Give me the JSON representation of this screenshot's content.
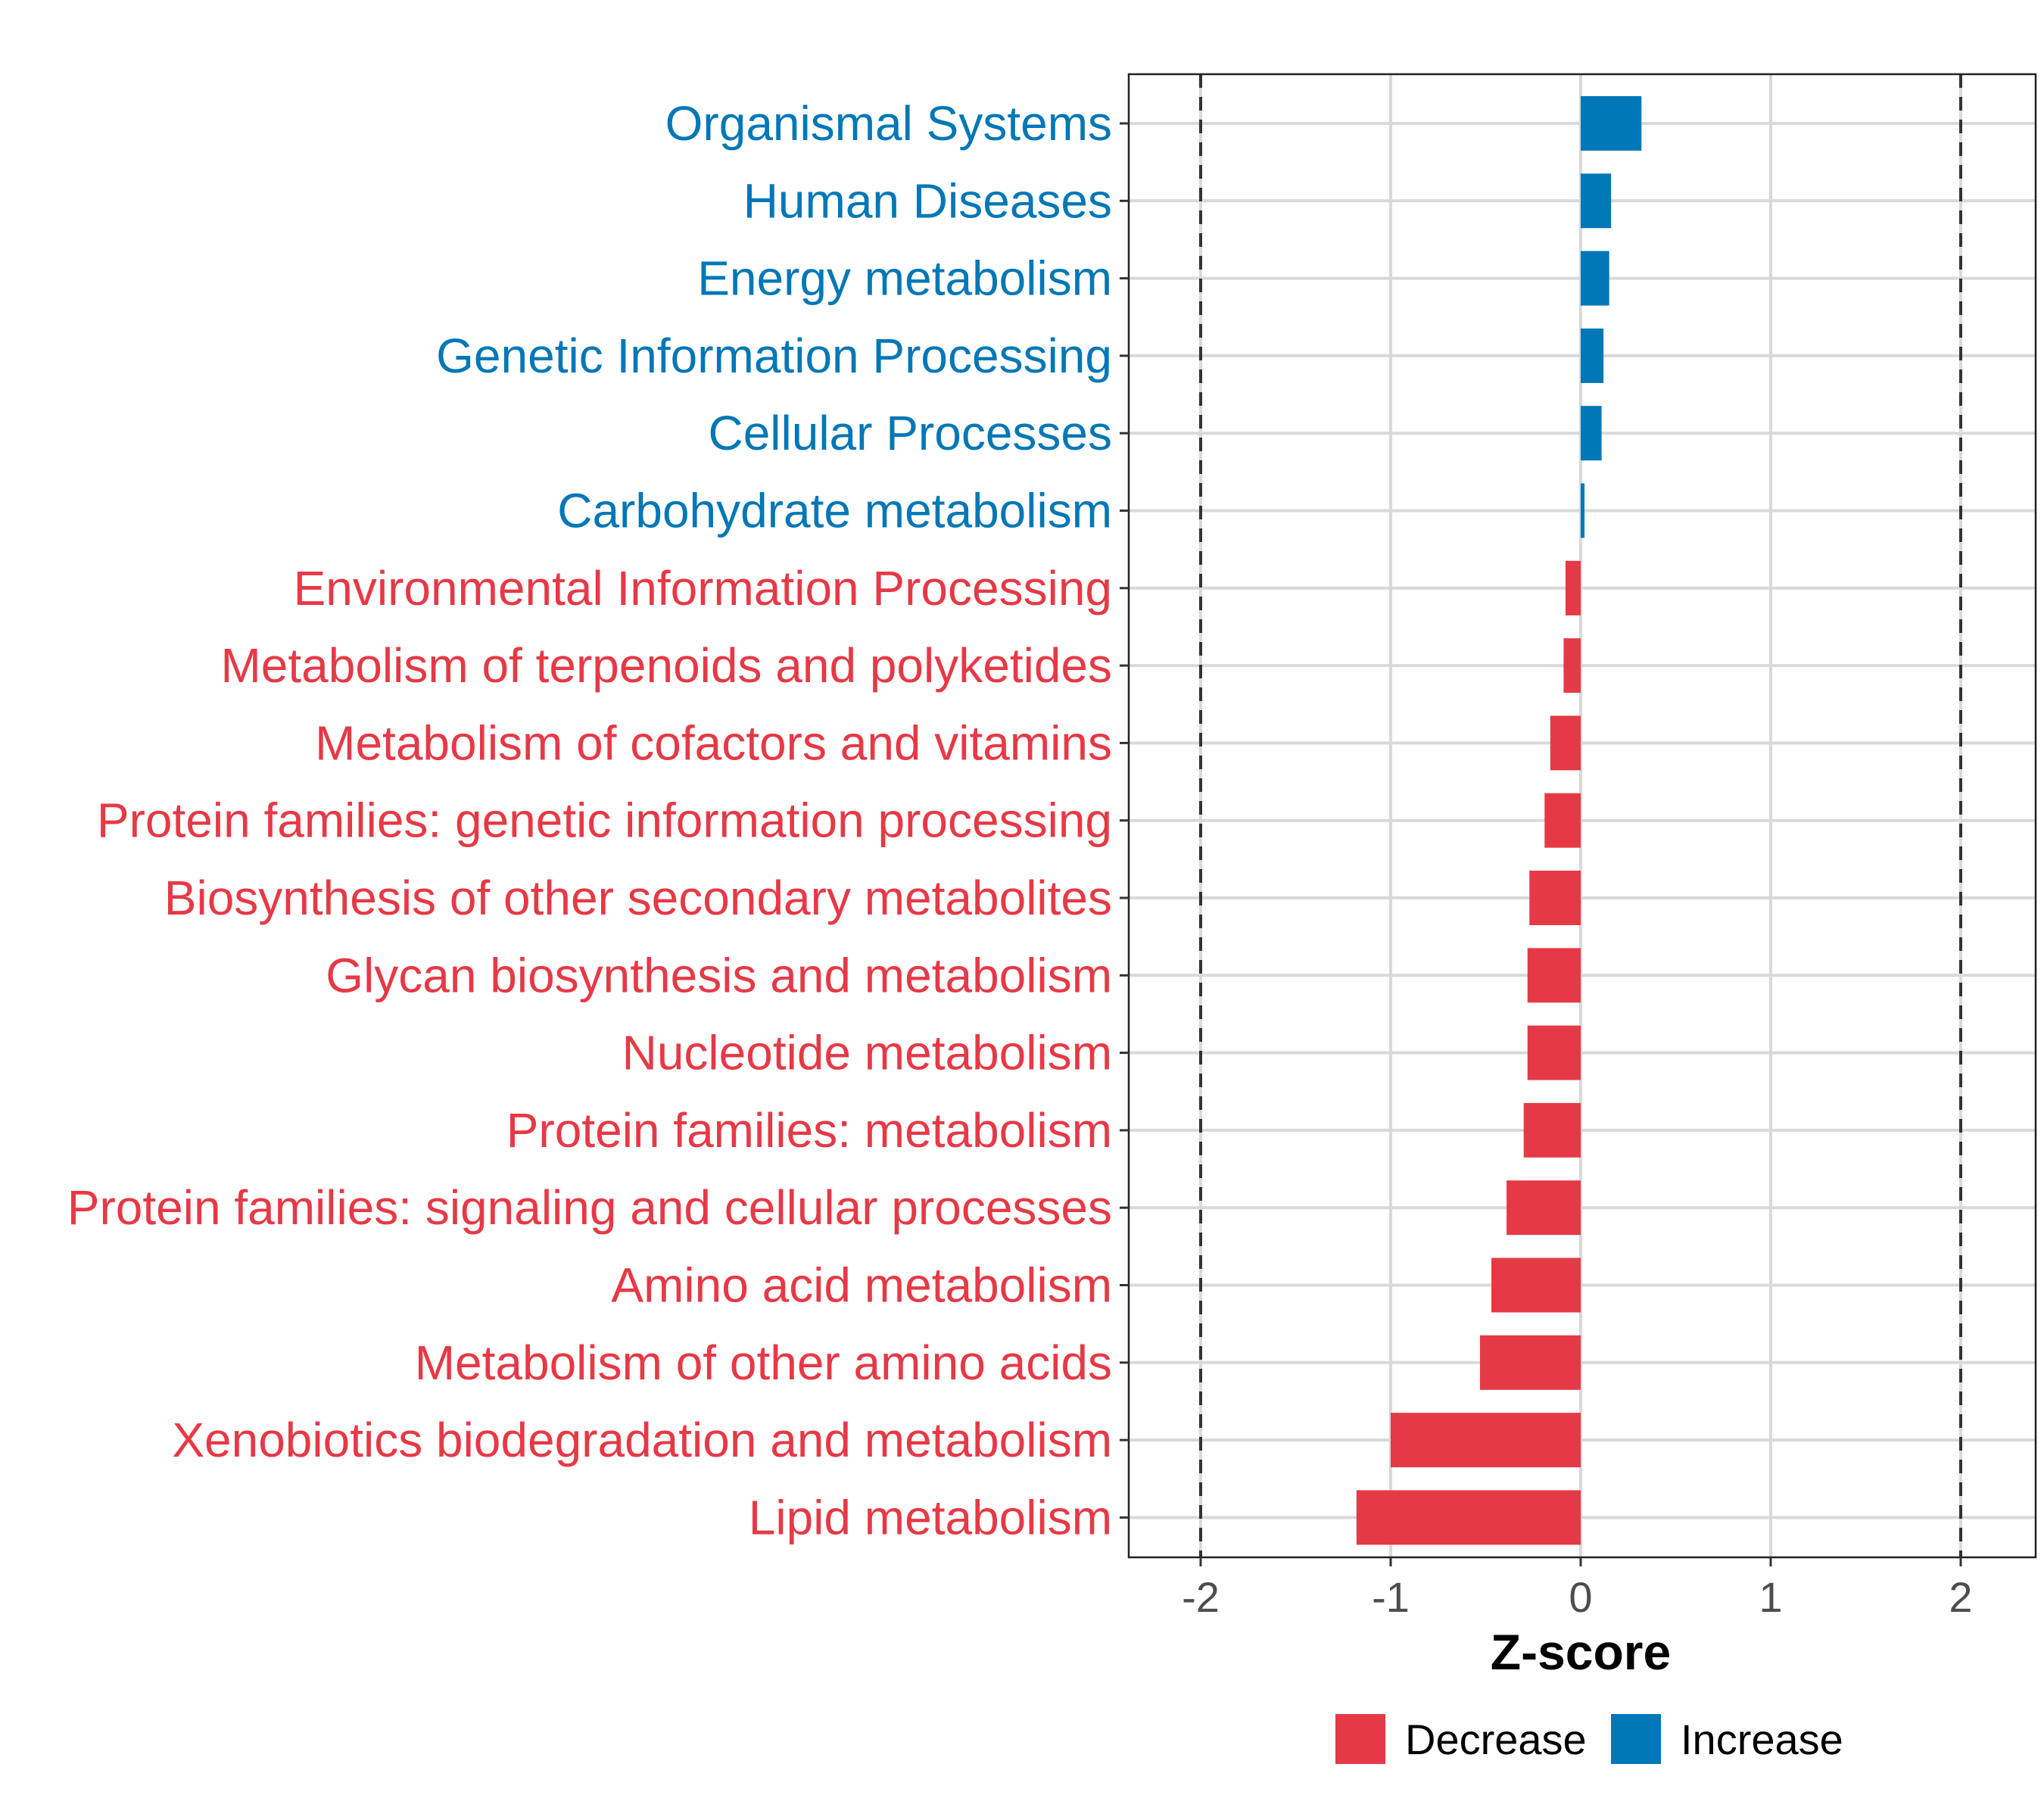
{
  "chart_data": {
    "type": "bar",
    "orientation": "horizontal",
    "xlabel": "Z-score",
    "xlim": [
      -2.4,
      2.4
    ],
    "xticks": [
      -2,
      -1,
      0,
      1,
      2
    ],
    "xtick_labels": [
      "-2",
      "-1",
      "0",
      "1",
      "2"
    ],
    "reference_lines": [
      -2,
      2
    ],
    "categories": [
      "Organismal Systems",
      "Human Diseases",
      "Energy metabolism",
      "Genetic Information Processing",
      "Cellular Processes",
      "Carbohydrate metabolism",
      "Environmental Information Processing",
      "Metabolism of terpenoids and polyketides",
      "Metabolism of cofactors and vitamins",
      "Protein families: genetic information processing",
      "Biosynthesis of other secondary metabolites",
      "Glycan biosynthesis and metabolism",
      "Nucleotide metabolism",
      "Protein families: metabolism",
      "Protein families: signaling and cellular processes",
      "Amino acid metabolism",
      "Metabolism of other amino acids",
      "Xenobiotics biodegradation and metabolism",
      "Lipid metabolism"
    ],
    "values": [
      0.32,
      0.16,
      0.15,
      0.12,
      0.11,
      0.02,
      -0.08,
      -0.09,
      -0.16,
      -0.19,
      -0.27,
      -0.28,
      -0.28,
      -0.3,
      -0.39,
      -0.47,
      -0.53,
      -1.0,
      -1.18
    ],
    "legend": {
      "position": "bottom",
      "entries": [
        {
          "label": "Decrease",
          "color": "#E63946"
        },
        {
          "label": "Increase",
          "color": "#0077B6"
        }
      ]
    },
    "colors": {
      "decrease": "#E63946",
      "increase": "#0077B6"
    }
  }
}
